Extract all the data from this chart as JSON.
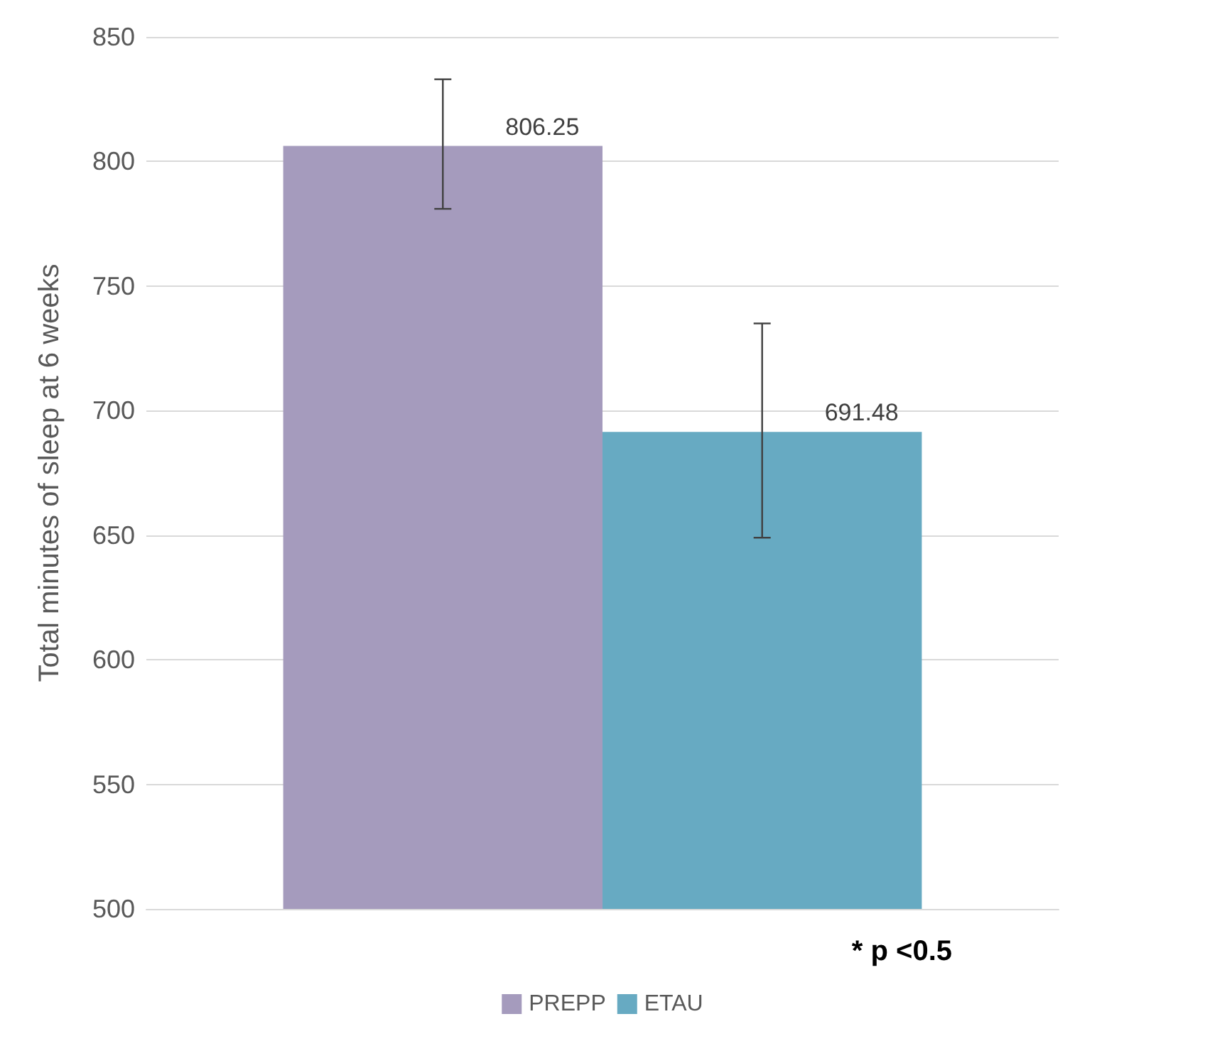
{
  "chart_data": {
    "type": "bar",
    "ylabel": "Total minutes of sleep at 6 weeks",
    "categories": [
      null
    ],
    "series": [
      {
        "name": "PREPP",
        "color": "#a59bbd",
        "values": [
          806.25
        ],
        "errors": [
          [
            781,
            833
          ]
        ]
      },
      {
        "name": "ETAU",
        "color": "#67aac2",
        "values": [
          691.48
        ],
        "errors": [
          [
            649,
            735
          ]
        ]
      }
    ],
    "ylim": [
      500,
      850
    ],
    "yticks": [
      500,
      550,
      600,
      650,
      700,
      750,
      800,
      850
    ],
    "grid": "y",
    "legend": "bottom",
    "data_labels": true,
    "annotations": [
      "* p <0.5"
    ]
  }
}
